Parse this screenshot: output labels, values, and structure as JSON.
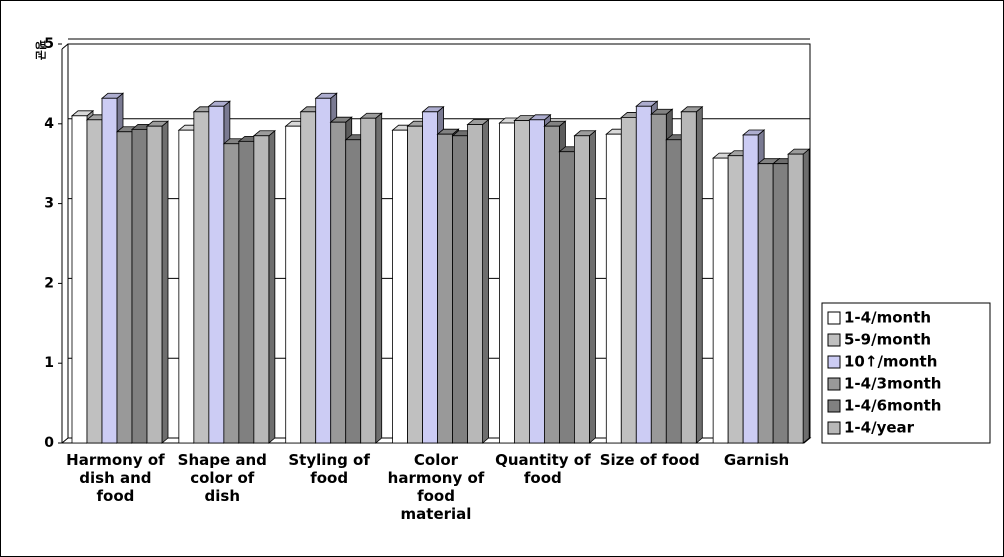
{
  "chart_data": {
    "type": "bar3d",
    "y_label": "평균",
    "categories": [
      "Harmony of dish and food",
      "Shape and color of dish",
      "Styling of food",
      "Color harmony of food material",
      "Quantity of food",
      "Size of food",
      "Garnish"
    ],
    "series": [
      {
        "name": "1-4/month",
        "color": "#ffffff",
        "values": [
          4.1,
          3.92,
          3.97,
          3.92,
          4.01,
          3.87,
          3.57
        ]
      },
      {
        "name": "5-9/month",
        "color": "#c0c0c0",
        "values": [
          4.05,
          4.15,
          4.15,
          3.97,
          4.04,
          4.08,
          3.6
        ]
      },
      {
        "name": "10↑/month",
        "color": "#ccccf4",
        "values": [
          4.32,
          4.22,
          4.32,
          4.15,
          4.05,
          4.22,
          3.86
        ]
      },
      {
        "name": "1-4/3month",
        "color": "#999999",
        "values": [
          3.9,
          3.75,
          4.02,
          3.87,
          3.97,
          4.12,
          3.5
        ]
      },
      {
        "name": "1-4/6month",
        "color": "#808080",
        "values": [
          3.93,
          3.78,
          3.8,
          3.85,
          3.65,
          3.8,
          3.5
        ]
      },
      {
        "name": "1-4/year",
        "color": "#b8b8b8",
        "values": [
          3.97,
          3.85,
          4.07,
          3.99,
          3.85,
          4.15,
          3.62
        ]
      }
    ],
    "ylim": [
      0,
      5
    ],
    "yticks": [
      0,
      1,
      2,
      3,
      4,
      5
    ],
    "grid": true,
    "legend": "right"
  }
}
